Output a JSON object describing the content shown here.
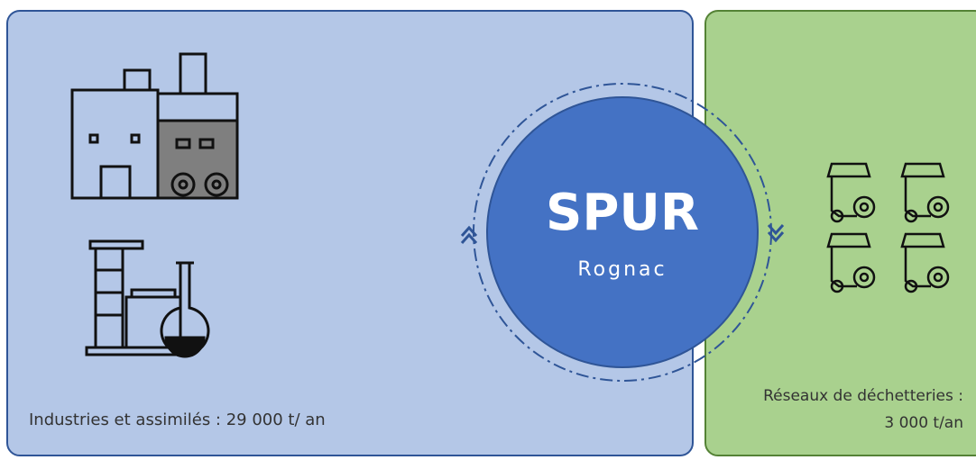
{
  "left_panel": {
    "label": "Industries et assimilés : 29 000 t/ an"
  },
  "center": {
    "title": "SPUR",
    "subtitle": "Rognac"
  },
  "right_panel": {
    "label_lines": [
      "Réseaux de déchetteries :",
      "3 000 t/an"
    ]
  }
}
